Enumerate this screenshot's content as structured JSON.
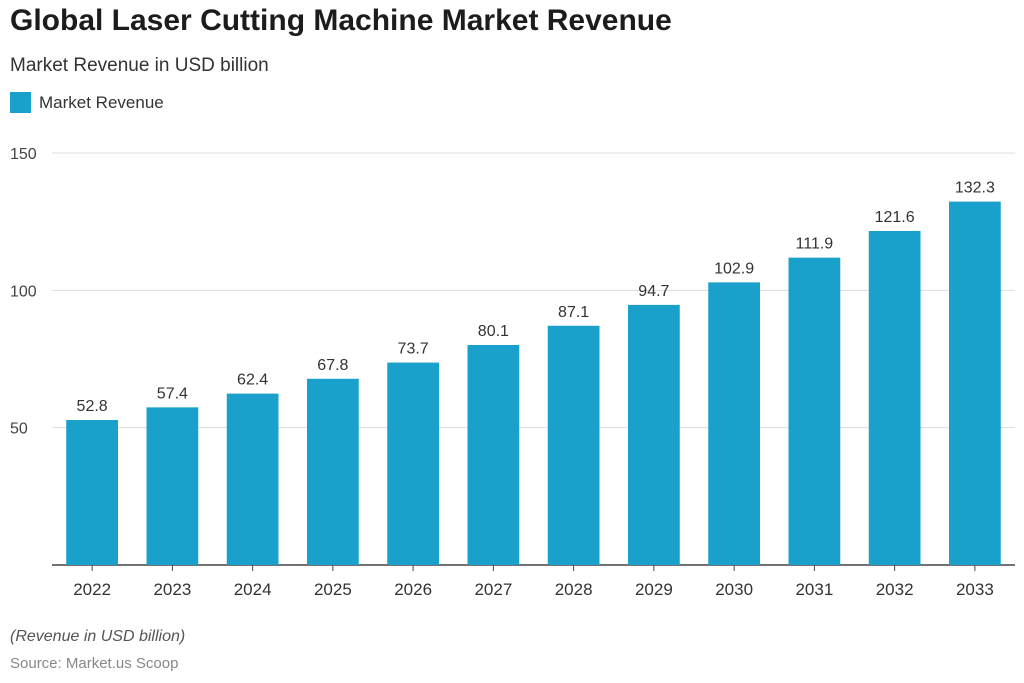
{
  "header": {
    "title": "Global Laser Cutting Machine Market Revenue",
    "subtitle": "Market Revenue in USD billion"
  },
  "footer": {
    "note": "(Revenue in USD billion)",
    "source": "Source: Market.us Scoop"
  },
  "colors": {
    "bar": "#1aa1cb",
    "grid": "#dddddd",
    "axis": "#444444"
  },
  "chart_data": {
    "type": "bar",
    "title": "Global Laser Cutting Machine Market Revenue",
    "subtitle": "Market Revenue in USD billion",
    "xlabel": "",
    "ylabel": "",
    "categories": [
      "2022",
      "2023",
      "2024",
      "2025",
      "2026",
      "2027",
      "2028",
      "2029",
      "2030",
      "2031",
      "2032",
      "2033"
    ],
    "series": [
      {
        "name": "Market Revenue",
        "values": [
          52.8,
          57.4,
          62.4,
          67.8,
          73.7,
          80.1,
          87.1,
          94.7,
          102.9,
          111.9,
          121.6,
          132.3
        ]
      }
    ],
    "ylim": [
      0,
      150
    ],
    "yticks": [
      50,
      100,
      150
    ],
    "grid": true,
    "legend": "top-left",
    "data_labels": true
  }
}
